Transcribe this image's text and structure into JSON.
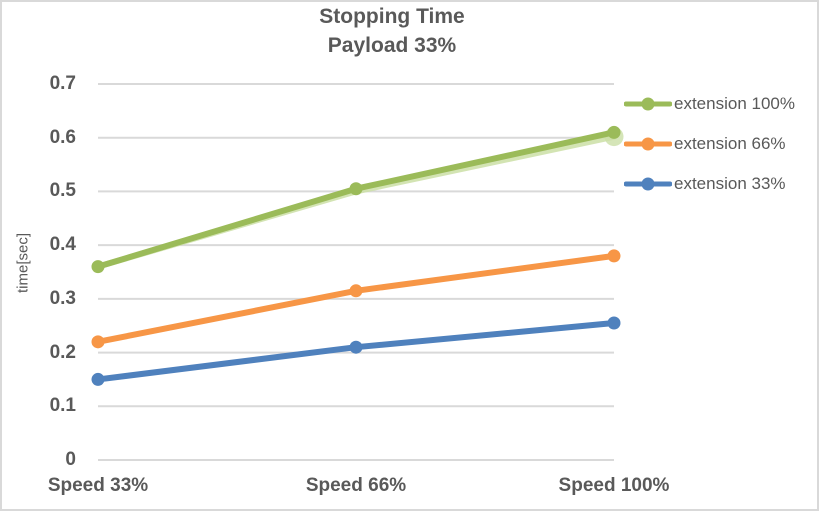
{
  "title": {
    "line1": "Stopping Time",
    "line2": "Payload 33%"
  },
  "colors": {
    "text": "#595959",
    "grid": "#D9D9D9",
    "background": "#FFFFFF",
    "frame_border": "#D9D9D9"
  },
  "chart_data": {
    "type": "line",
    "title": "Stopping Time",
    "subtitle": "Payload 33%",
    "xlabel": "",
    "ylabel": "time[sec]",
    "categories": [
      "Speed 33%",
      "Speed 66%",
      "Speed 100%"
    ],
    "series": [
      {
        "name": "extension 100%",
        "color": "#9BBB59",
        "values": [
          0.36,
          0.505,
          0.61
        ]
      },
      {
        "name": "extension 66%",
        "color": "#F79646",
        "values": [
          0.22,
          0.315,
          0.38
        ]
      },
      {
        "name": "extension 33%",
        "color": "#4F81BD",
        "values": [
          0.15,
          0.21,
          0.255
        ]
      }
    ],
    "shadow_series": {
      "note": "faint light-green duplicate line visible behind extension 100% on the Speed 66% to Speed 100% segment",
      "color": "#CBDFA6",
      "values": [
        0.36,
        0.5,
        0.602
      ]
    },
    "ylim": [
      0,
      0.7
    ],
    "ytick_step": 0.1,
    "yticks": [
      "0",
      "0.1",
      "0.2",
      "0.3",
      "0.4",
      "0.5",
      "0.6",
      "0.7"
    ],
    "grid": true,
    "legend_position": "right",
    "marker": "circle",
    "line_width": 6,
    "marker_radius": 6.5
  }
}
